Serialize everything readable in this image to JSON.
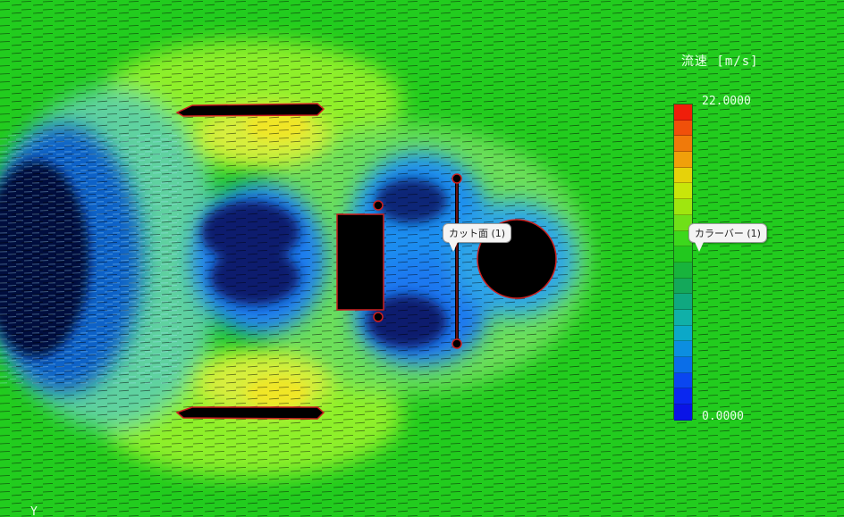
{
  "legend": {
    "title": "流速 [m/s]",
    "max_label": "22.0000",
    "min_label": "0.0000",
    "colors": [
      "#f01e0a",
      "#f0500a",
      "#f07a0a",
      "#f0a00a",
      "#e6d20a",
      "#c8e60a",
      "#9fe60f",
      "#6fe018",
      "#3cd81c",
      "#22c81e",
      "#18b43c",
      "#14a85a",
      "#10a880",
      "#10b0a8",
      "#0ca8c8",
      "#0c8ee0",
      "#0a6ee8",
      "#0a46f0",
      "#0a28f0",
      "#0a14e6"
    ]
  },
  "callouts": {
    "cut_plane": "カット面 (1)",
    "colorbar": "カラーバー (1)"
  },
  "axis": {
    "label": "Y"
  },
  "colors": {
    "background": "#22cc1e",
    "high_speed": "#f0e628",
    "mid_speed": "#8ef02a",
    "low_speed": "#1e78f0",
    "wake": "#0a0a46",
    "object_fill": "#000000",
    "object_outline": "#cc2020"
  }
}
